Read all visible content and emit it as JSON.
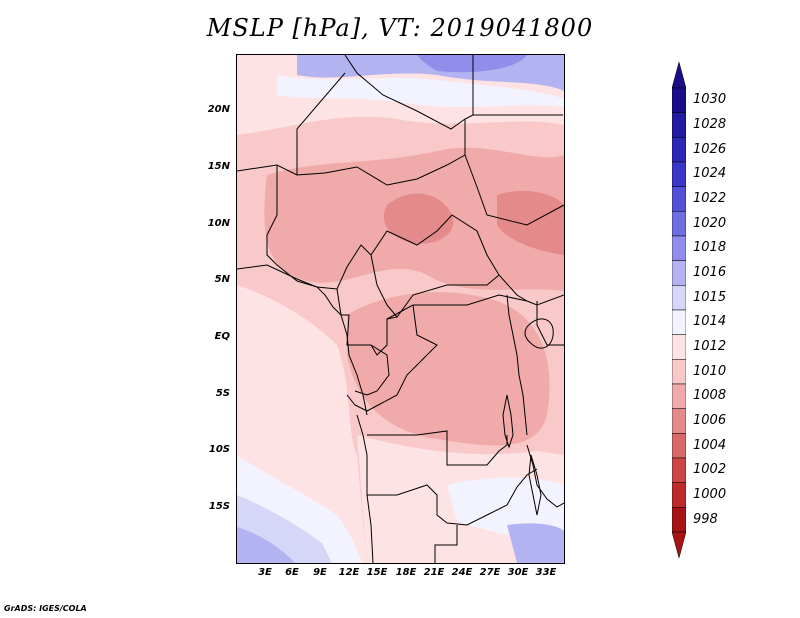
{
  "title": "MSLP [hPa], VT: 2019041800",
  "credit": "GrADS: IGES/COLA",
  "y_axis_labels": [
    "20N",
    "15N",
    "10N",
    "5N",
    "EQ",
    "5S",
    "10S",
    "15S"
  ],
  "x_axis_labels": [
    "3E",
    "6E",
    "9E",
    "12E",
    "15E",
    "18E",
    "21E",
    "24E",
    "27E",
    "30E",
    "33E"
  ],
  "colorbar": {
    "labels": [
      "1030",
      "1028",
      "1026",
      "1024",
      "1022",
      "1020",
      "1018",
      "1016",
      "1015",
      "1014",
      "1012",
      "1010",
      "1008",
      "1006",
      "1004",
      "1002",
      "1000",
      "998"
    ],
    "colors": [
      "#1a0e8a",
      "#221aa0",
      "#2c27b5",
      "#3a37c8",
      "#5250d6",
      "#6f6de2",
      "#908eea",
      "#b3b3f2",
      "#d6d6f8",
      "#f3f3ff",
      "#fde3e3",
      "#f9c8c8",
      "#f0aaaa",
      "#e48a8a",
      "#d96868",
      "#cc4646",
      "#bd2a2a",
      "#a81414"
    ]
  }
}
